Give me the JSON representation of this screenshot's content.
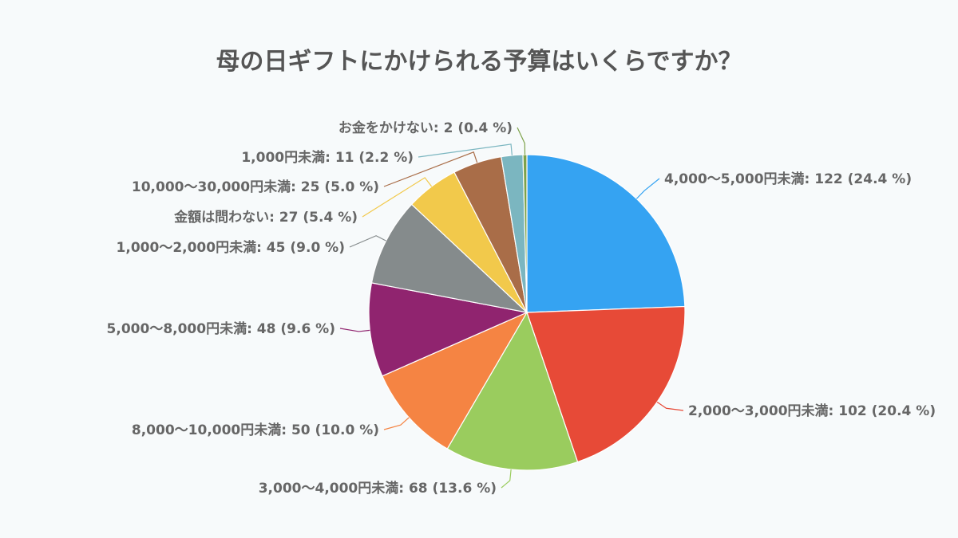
{
  "chart_data": {
    "type": "pie",
    "title": "母の日ギフトにかけられる予算はいくらですか？",
    "start": "top",
    "direction": "clockwise",
    "slices": [
      {
        "label": "4,000〜5,000円未満",
        "value": 122,
        "percent": "24.4 %",
        "color": "#35a3f2"
      },
      {
        "label": "2,000〜3,000円未満",
        "value": 102,
        "percent": "20.4 %",
        "color": "#e74a37"
      },
      {
        "label": "3,000〜4,000円未満",
        "value": 68,
        "percent": "13.6 %",
        "color": "#9acc5e"
      },
      {
        "label": "8,000〜10,000円未満",
        "value": 50,
        "percent": "10.0 %",
        "color": "#f58443"
      },
      {
        "label": "5,000〜8,000円未満",
        "value": 48,
        "percent": "9.6 %",
        "color": "#90246f"
      },
      {
        "label": "1,000〜2,000円未満",
        "value": 45,
        "percent": "9.0 %",
        "color": "#858b8c"
      },
      {
        "label": "金額は問わない",
        "value": 27,
        "percent": "5.4 %",
        "color": "#f2c94b"
      },
      {
        "label": "10,000〜30,000円未満",
        "value": 25,
        "percent": "5.0 %",
        "color": "#a96d48"
      },
      {
        "label": "1,000円未満",
        "value": 11,
        "percent": "2.2 %",
        "color": "#7bb6c0"
      },
      {
        "label": "お金をかけない",
        "value": 2,
        "percent": "0.4 %",
        "color": "#7da24a"
      }
    ]
  }
}
